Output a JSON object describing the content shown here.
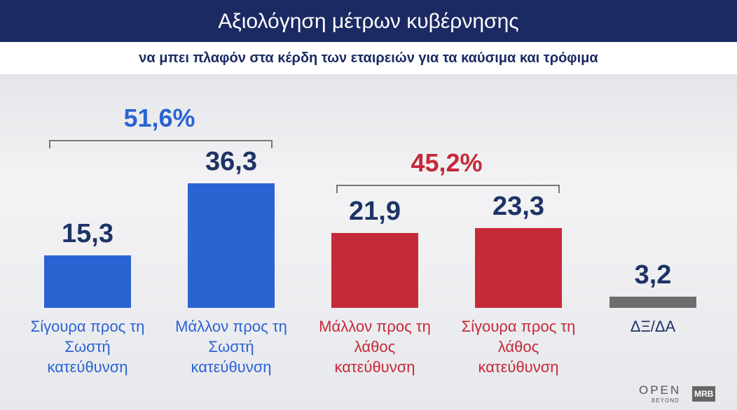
{
  "chart_data": {
    "type": "bar",
    "title": "Αξιολόγηση μέτρων κυβέρνησης",
    "subtitle": "να μπει πλαφόν στα κέρδη των εταιρειών για τα καύσιμα και τρόφιμα",
    "categories": [
      "Σίγουρα προς τη Σωστή κατεύθυνση",
      "Μάλλον προς τη Σωστή κατεύθυνση",
      "Μάλλον προς τη λάθος κατεύθυνση",
      "Σίγουρα προς τη λάθος κατεύθυνση",
      "ΔΞ/ΔΑ"
    ],
    "values": [
      15.3,
      36.3,
      21.9,
      23.3,
      3.2
    ],
    "value_labels": [
      "15,3",
      "36,3",
      "21,9",
      "23,3",
      "3,2"
    ],
    "colors": [
      "#2b63d3",
      "#2b63d3",
      "#c52a38",
      "#c52a38",
      "#6d6d6d"
    ],
    "label_colors": [
      "#2b63d3",
      "#2b63d3",
      "#c52a38",
      "#c52a38",
      "#1e3366"
    ],
    "groups": [
      {
        "value": 51.6,
        "label": "51,6%",
        "color": "#2b63d3"
      },
      {
        "value": 45.2,
        "label": "45,2%",
        "color": "#c52a38"
      }
    ],
    "logos": [
      "OPEN",
      "BEYOND",
      "MRB"
    ]
  }
}
